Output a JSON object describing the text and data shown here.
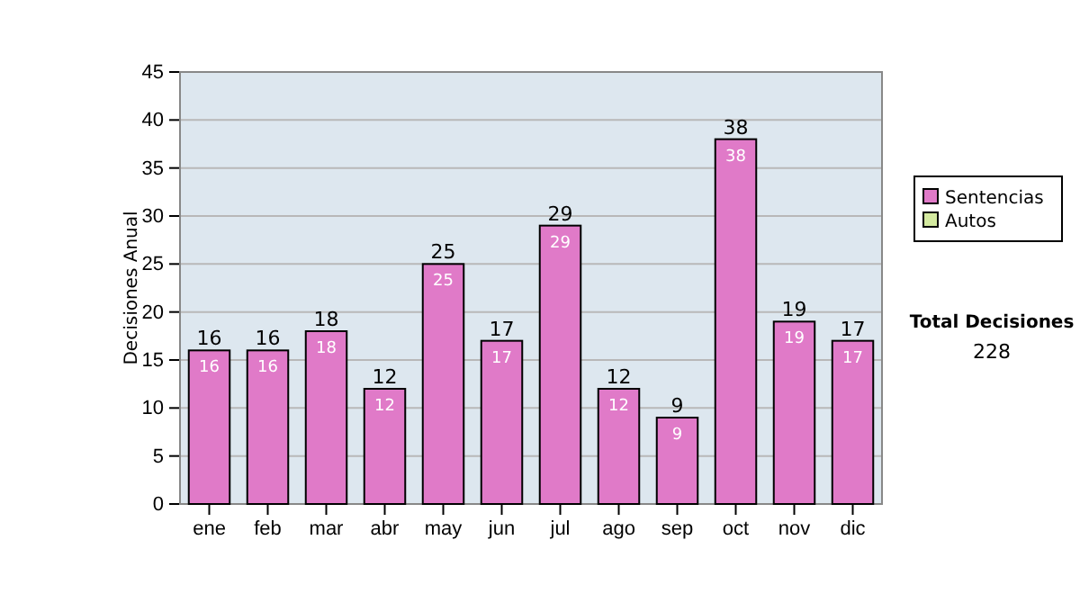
{
  "chart_data": {
    "type": "bar",
    "ylabel": "Decisiones Anual",
    "categories": [
      "ene",
      "feb",
      "mar",
      "abr",
      "may",
      "jun",
      "jul",
      "ago",
      "sep",
      "oct",
      "nov",
      "dic"
    ],
    "stacked": true,
    "series": [
      {
        "name": "Sentencias",
        "color": "#e07ac8",
        "values": [
          16,
          16,
          18,
          12,
          25,
          17,
          29,
          12,
          9,
          38,
          19,
          17
        ],
        "value_labels": [
          "16",
          "16",
          "18",
          "12",
          "25",
          "17",
          "29",
          "12",
          "9",
          "38",
          "19",
          "17"
        ]
      },
      {
        "name": "Autos",
        "color": "#d4eaa0",
        "values": [
          0,
          0,
          0,
          0,
          0,
          0,
          0,
          0,
          0,
          0,
          0,
          0
        ]
      }
    ],
    "totals": [
      "16",
      "16",
      "18",
      "12",
      "25",
      "17",
      "29",
      "12",
      "9",
      "38",
      "19",
      "17"
    ],
    "ylim": [
      0,
      45
    ],
    "yticks": [
      0,
      5,
      10,
      15,
      20,
      25,
      30,
      35,
      40,
      45
    ],
    "grid": "y",
    "legend": "right",
    "annotations": [
      "Total Decisiones",
      "228"
    ]
  }
}
